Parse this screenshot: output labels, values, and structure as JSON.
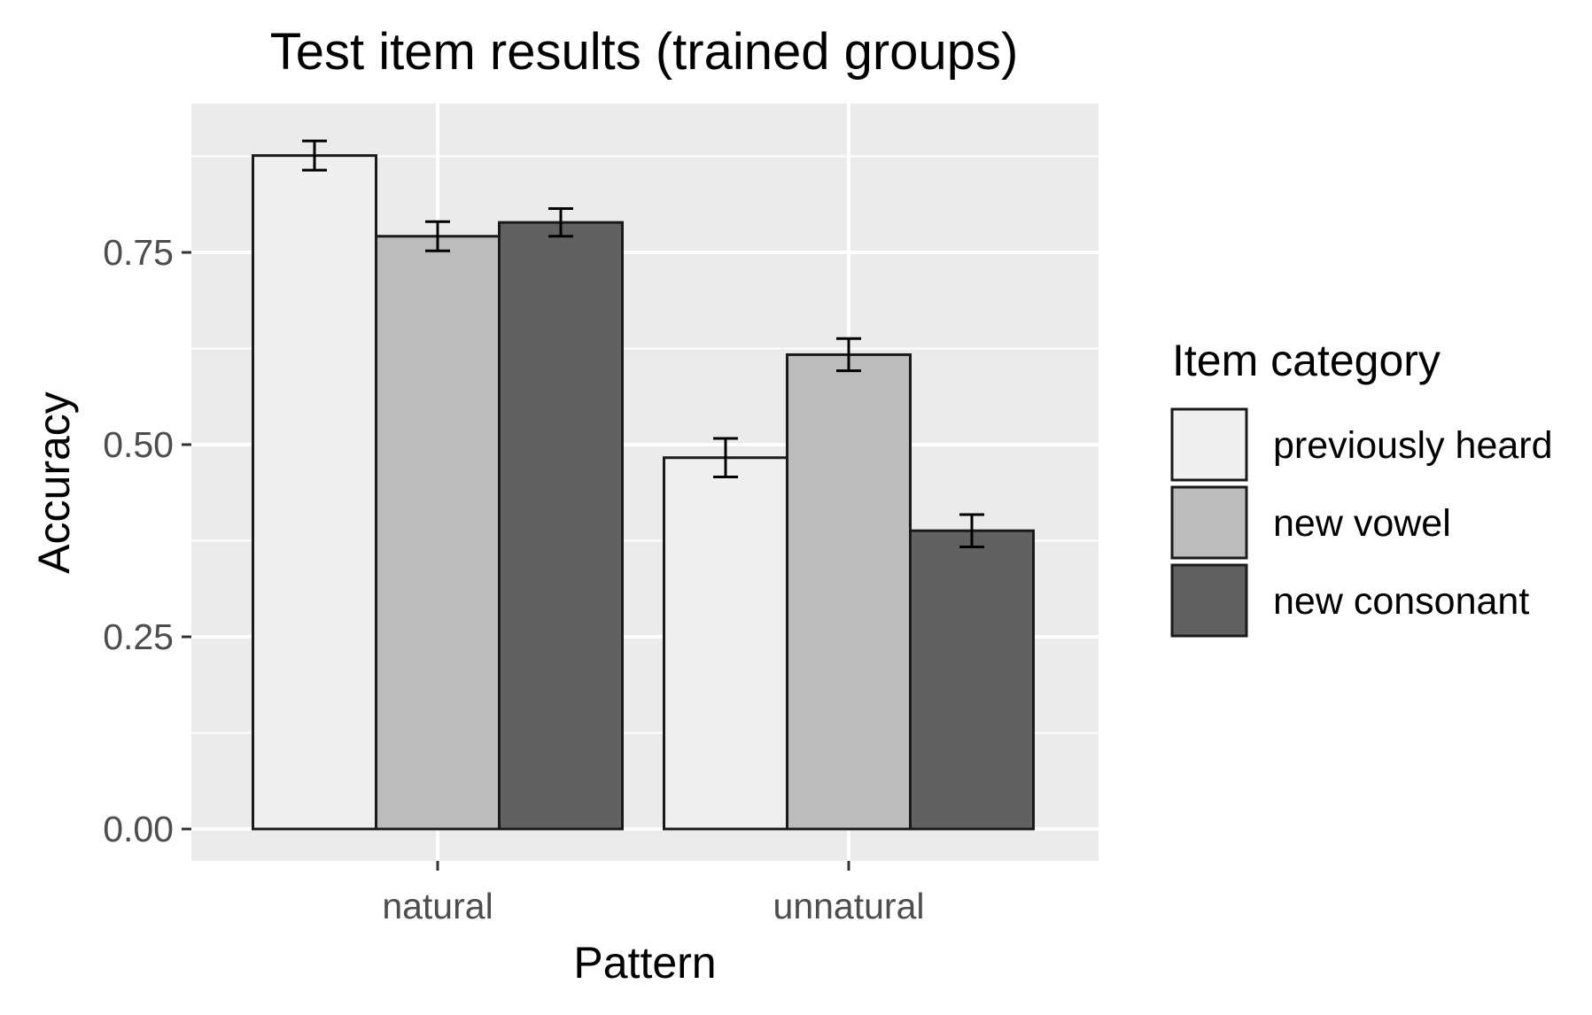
{
  "chart_data": {
    "type": "bar",
    "title": "Test item results (trained groups)",
    "xlabel": "Pattern",
    "ylabel": "Accuracy",
    "categories": [
      "natural",
      "unnatural"
    ],
    "ylim": [
      0,
      0.94
    ],
    "yticks": [
      0,
      0.25,
      0.5,
      0.75
    ],
    "ytick_labels": [
      "0.00",
      "0.25",
      "0.50",
      "0.75"
    ],
    "grid": true,
    "legend": {
      "title": "Item category",
      "position": "right"
    },
    "series": [
      {
        "name": "previously heard",
        "color": "#f0f0f0",
        "values": [
          0.876,
          0.483
        ],
        "errors": [
          0.019,
          0.025
        ]
      },
      {
        "name": "new vowel",
        "color": "#bcbcbc",
        "values": [
          0.771,
          0.617
        ],
        "errors": [
          0.019,
          0.021
        ]
      },
      {
        "name": "new consonant",
        "color": "#616161",
        "values": [
          0.789,
          0.388
        ],
        "errors": [
          0.018,
          0.021
        ]
      }
    ]
  }
}
